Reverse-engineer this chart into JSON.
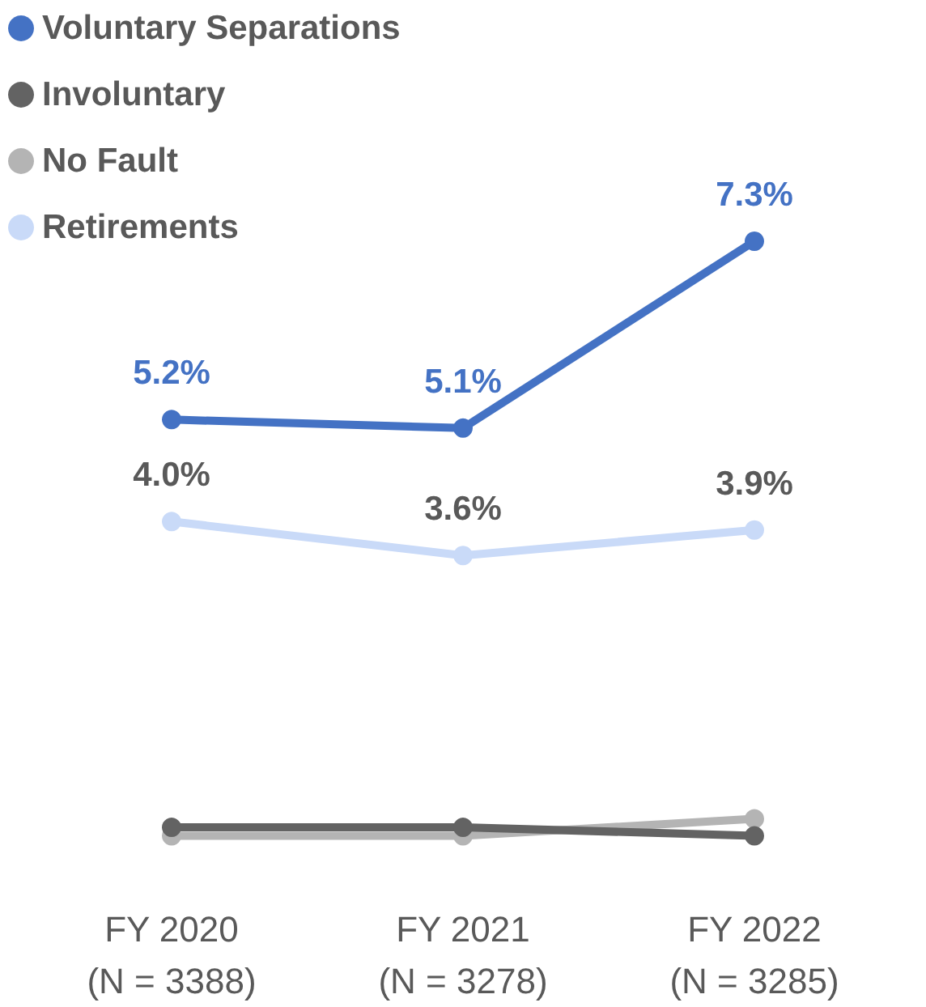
{
  "chart_data": {
    "type": "line",
    "categories": [
      "FY 2020\n(N = 3388)",
      "FY 2021\n(N = 3278)",
      "FY 2022\n(N = 3285)"
    ],
    "series": [
      {
        "name": "Voluntary Separations",
        "color": "#4472c4",
        "values": [
          5.2,
          5.1,
          7.3
        ],
        "value_labels": [
          "5.2%",
          "5.1%",
          "7.3%"
        ]
      },
      {
        "name": "Involuntary",
        "color": "#636363",
        "values": [
          0.4,
          0.4,
          0.3
        ]
      },
      {
        "name": "No Fault",
        "color": "#b4b4b4",
        "values": [
          0.3,
          0.3,
          0.5
        ]
      },
      {
        "name": "Retirements",
        "color": "#c9daf8",
        "values": [
          4.0,
          3.6,
          3.9
        ],
        "value_labels": [
          "4.0%",
          "3.6%",
          "3.9%"
        ]
      }
    ],
    "legend": "top left",
    "marker": "circle",
    "line_style": "solid",
    "grid": false
  }
}
